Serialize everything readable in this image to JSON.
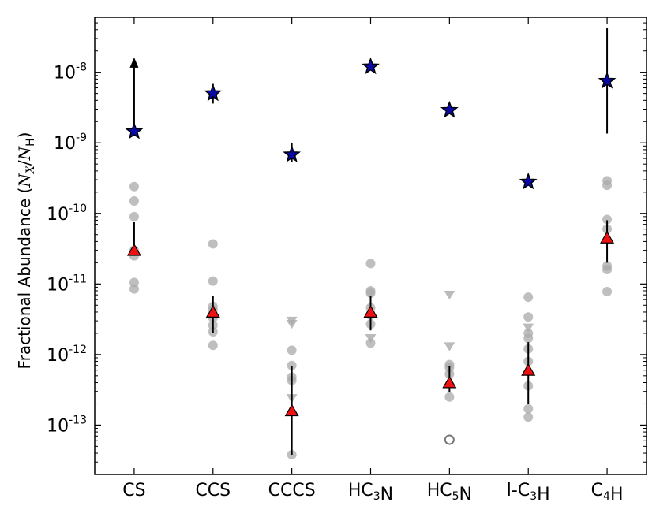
{
  "chart_data": {
    "type": "scatter",
    "ylabel": {
      "prefix": "Fractional Abundance (",
      "num": "N",
      "num_sub": "X",
      "sep": "/",
      "den": "N",
      "den_sub": "H",
      "suffix": ")"
    },
    "yscale": "log",
    "ylim": [
      2e-14,
      6e-08
    ],
    "y_ticks": [
      {
        "value": 1e-13,
        "base": "10",
        "exp": "-13"
      },
      {
        "value": 1e-12,
        "base": "10",
        "exp": "-12"
      },
      {
        "value": 1e-11,
        "base": "10",
        "exp": "-11"
      },
      {
        "value": 1e-10,
        "base": "10",
        "exp": "-10"
      },
      {
        "value": 1e-09,
        "base": "10",
        "exp": "-9"
      },
      {
        "value": 1e-08,
        "base": "10",
        "exp": "-8"
      }
    ],
    "categories": [
      {
        "label": "CS",
        "parts": [
          [
            "CS",
            ""
          ]
        ]
      },
      {
        "label": "CCS",
        "parts": [
          [
            "CCS",
            ""
          ]
        ]
      },
      {
        "label": "CCCS",
        "parts": [
          [
            "CCCS",
            ""
          ]
        ]
      },
      {
        "label": "HC3N",
        "parts": [
          [
            "HC",
            "3"
          ],
          [
            "N",
            ""
          ]
        ]
      },
      {
        "label": "HC5N",
        "parts": [
          [
            "HC",
            "5"
          ],
          [
            "N",
            ""
          ]
        ]
      },
      {
        "label": "l-C3H",
        "parts": [
          [
            "l-C",
            "3"
          ],
          [
            "H",
            ""
          ]
        ]
      },
      {
        "label": "C4H",
        "parts": [
          [
            "C",
            "4"
          ],
          [
            "H",
            ""
          ]
        ]
      }
    ],
    "colors": {
      "star": "#0a0aa8",
      "triangle": "#ee1111",
      "gray": "#aaaaaa",
      "errorbar": "#000000"
    },
    "series": [
      {
        "marker": "star",
        "values": [
          {
            "value": 1.45e-09,
            "lower": 1.45e-09,
            "upper": 1.5e-08,
            "upper_arrow": true
          },
          {
            "value": 5e-09,
            "lower": 3.6e-09,
            "upper": 7e-09
          },
          {
            "value": 6.8e-10,
            "lower": 5.3e-10,
            "upper": 1e-09
          },
          {
            "value": 1.2e-08
          },
          {
            "value": 2.9e-09
          },
          {
            "value": 2.8e-10
          },
          {
            "value": 7.5e-09,
            "lower": 1.35e-09,
            "upper": 4.2e-08
          }
        ]
      },
      {
        "marker": "triangle",
        "values": [
          {
            "value": 3e-11,
            "lower": 2.8e-11,
            "upper": 7.5e-11
          },
          {
            "value": 4e-12,
            "lower": 2e-12,
            "upper": 6.8e-12
          },
          {
            "value": 1.6e-13,
            "lower": 3.8e-14,
            "upper": 6.8e-13
          },
          {
            "value": 4e-12,
            "lower": 2.2e-12,
            "upper": 6.8e-12
          },
          {
            "value": 4e-13,
            "lower": 2.9e-13,
            "upper": 6.8e-13
          },
          {
            "value": 6e-13,
            "lower": 2e-13,
            "upper": 1.5e-12
          },
          {
            "value": 4.5e-11,
            "lower": 2e-11,
            "upper": 8e-11
          }
        ]
      },
      {
        "marker": "gray-circle",
        "values": [
          [
            2.4e-10,
            1.5e-10,
            9e-11,
            3e-11,
            2.5e-11,
            1.05e-11,
            8.5e-12
          ],
          [
            3.7e-11,
            1.1e-11,
            4.8e-12,
            4.3e-12,
            3.3e-12,
            2.6e-12,
            2.1e-12,
            1.35e-12
          ],
          [
            1.15e-12,
            7e-13,
            4.8e-13,
            4.3e-13,
            3.8e-14
          ],
          [
            1.95e-11,
            8e-12,
            7.4e-12,
            4.6e-12,
            3.6e-12,
            2.7e-12,
            1.45e-12
          ],
          [
            7.2e-13,
            6.5e-13,
            5.3e-13,
            2.5e-13
          ],
          [
            6.5e-12,
            3.4e-12,
            2e-12,
            1.7e-12,
            1.2e-12,
            8e-13,
            3.6e-13,
            1.7e-13,
            1.3e-13
          ],
          [
            2.9e-10,
            2.5e-10,
            8.2e-11,
            6e-11,
            1.8e-11,
            1.6e-11,
            7.8e-12
          ]
        ]
      },
      {
        "marker": "gray-down-triangle",
        "values": [
          [],
          [],
          [
            3e-12,
            2.7e-12,
            2.4e-13
          ],
          [
            1.7e-12
          ],
          [
            7e-12,
            1.3e-12
          ],
          [
            2.4e-12
          ],
          []
        ]
      },
      {
        "marker": "open-circle",
        "values": [
          [],
          [],
          [],
          [],
          [
            6.2e-14
          ],
          [],
          []
        ]
      }
    ],
    "grid": false,
    "legend": "none"
  }
}
